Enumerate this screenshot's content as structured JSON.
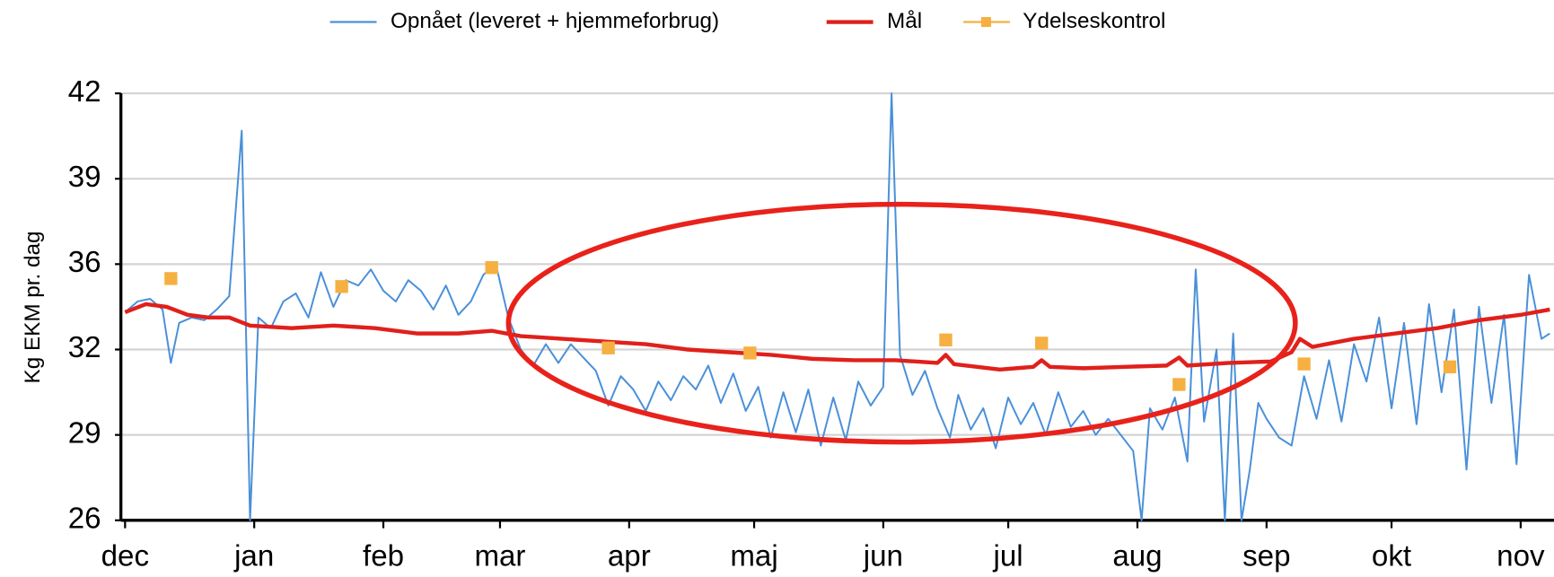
{
  "chart_data": {
    "type": "line",
    "ylabel": "Kg EKM pr. dag",
    "xlim": [
      -1,
      343
    ],
    "xticks": [
      {
        "value": 0,
        "label": "dec"
      },
      {
        "value": 31,
        "label": "jan"
      },
      {
        "value": 62,
        "label": "feb"
      },
      {
        "value": 90,
        "label": "mar"
      },
      {
        "value": 121,
        "label": "apr"
      },
      {
        "value": 151,
        "label": "maj"
      },
      {
        "value": 182,
        "label": "jun"
      },
      {
        "value": 212,
        "label": "jul"
      },
      {
        "value": 243,
        "label": "aug"
      },
      {
        "value": 274,
        "label": "sep"
      },
      {
        "value": 304,
        "label": "okt"
      },
      {
        "value": 335,
        "label": "nov"
      }
    ],
    "ylim": [
      26,
      42
    ],
    "yticks": [
      26,
      {
        "value": 29.2,
        "label": "29"
      },
      {
        "value": 32.4,
        "label": "32"
      },
      {
        "value": 35.6,
        "label": "36"
      },
      {
        "value": 38.8,
        "label": "39"
      },
      42
    ],
    "grid": true,
    "legend": "top",
    "series": [
      {
        "name": "Opnået (leveret + hjemmeforbrug)",
        "color": "#4a90d9",
        "style": "line",
        "x": [
          0,
          3,
          6,
          9,
          11,
          13,
          16,
          19,
          22,
          25,
          28,
          30,
          32,
          35,
          38,
          41,
          44,
          47,
          50,
          53,
          56,
          59,
          62,
          65,
          68,
          71,
          74,
          77,
          80,
          83,
          86,
          89,
          92,
          95,
          98,
          101,
          104,
          107,
          110,
          113,
          116,
          119,
          122,
          125,
          128,
          131,
          134,
          137,
          140,
          143,
          146,
          149,
          152,
          155,
          158,
          161,
          164,
          167,
          170,
          173,
          176,
          179,
          182,
          184,
          186,
          189,
          192,
          195,
          198,
          200,
          203,
          206,
          209,
          212,
          215,
          218,
          221,
          224,
          227,
          230,
          233,
          236,
          239,
          242,
          244,
          246,
          249,
          252,
          255,
          257,
          259,
          262,
          264,
          266,
          268,
          270,
          272,
          274,
          277,
          280,
          283,
          286,
          289,
          292,
          295,
          298,
          301,
          304,
          307,
          310,
          313,
          316,
          319,
          322,
          325,
          328,
          331,
          334,
          337,
          340,
          342
        ],
        "values": [
          33.8,
          34.2,
          34.3,
          33.9,
          31.9,
          33.4,
          33.6,
          33.5,
          33.9,
          34.4,
          40.6,
          26,
          33.6,
          33.2,
          34.2,
          34.5,
          33.6,
          35.3,
          34.0,
          35.0,
          34.8,
          35.4,
          34.6,
          34.2,
          35.0,
          34.6,
          33.9,
          34.8,
          33.7,
          34.2,
          35.2,
          35.6,
          33.6,
          32.4,
          31.8,
          32.6,
          31.9,
          32.6,
          32.1,
          31.6,
          30.3,
          31.4,
          30.9,
          30.1,
          31.2,
          30.5,
          31.4,
          30.9,
          31.8,
          30.4,
          31.5,
          30.1,
          31.0,
          29.1,
          30.8,
          29.3,
          30.9,
          28.8,
          30.6,
          29.0,
          31.2,
          30.3,
          31.0,
          42,
          32.2,
          30.7,
          31.6,
          30.2,
          29.1,
          30.7,
          29.4,
          30.2,
          28.7,
          30.6,
          29.6,
          30.4,
          29.2,
          30.8,
          29.5,
          30.1,
          29.2,
          29.8,
          29.2,
          28.6,
          26,
          30.2,
          29.4,
          30.6,
          28.2,
          35.4,
          29.7,
          32.4,
          26,
          33.0,
          26,
          27.9,
          30.4,
          29.8,
          29.1,
          28.8,
          31.4,
          29.8,
          32.0,
          29.7,
          32.6,
          31.2,
          33.6,
          30.2,
          33.4,
          29.6,
          34.1,
          30.8,
          33.9,
          27.9,
          34.0,
          30.4,
          33.7,
          28.1,
          35.2,
          32.8,
          33.0
        ]
      },
      {
        "name": "Mål",
        "color": "#e0201b",
        "style": "line",
        "x": [
          0,
          5,
          10,
          15,
          20,
          25,
          30,
          40,
          50,
          60,
          70,
          80,
          88,
          95,
          105,
          115,
          125,
          135,
          145,
          155,
          165,
          175,
          185,
          195,
          197,
          199,
          210,
          218,
          220,
          222,
          230,
          240,
          250,
          253,
          255,
          265,
          275,
          280,
          282,
          285,
          295,
          305,
          315,
          325,
          335,
          342
        ],
        "values": [
          33.8,
          34.1,
          34.0,
          33.7,
          33.6,
          33.6,
          33.3,
          33.2,
          33.3,
          33.2,
          33.0,
          33.0,
          33.1,
          32.9,
          32.8,
          32.7,
          32.6,
          32.4,
          32.3,
          32.2,
          32.05,
          32.0,
          32.0,
          31.9,
          32.2,
          31.85,
          31.65,
          31.75,
          32.0,
          31.75,
          31.7,
          31.75,
          31.8,
          32.1,
          31.8,
          31.9,
          31.95,
          32.3,
          32.8,
          32.5,
          32.8,
          33.0,
          33.2,
          33.5,
          33.7,
          33.9
        ]
      },
      {
        "name": "Ydelseskontrol",
        "color": "#f5b041",
        "style": "marker",
        "x": [
          11,
          52,
          88,
          116,
          150,
          197,
          220,
          253,
          283,
          318
        ],
        "values": [
          35.06,
          34.76,
          35.47,
          32.46,
          32.27,
          32.76,
          32.64,
          31.09,
          31.86,
          31.75
        ]
      }
    ]
  }
}
